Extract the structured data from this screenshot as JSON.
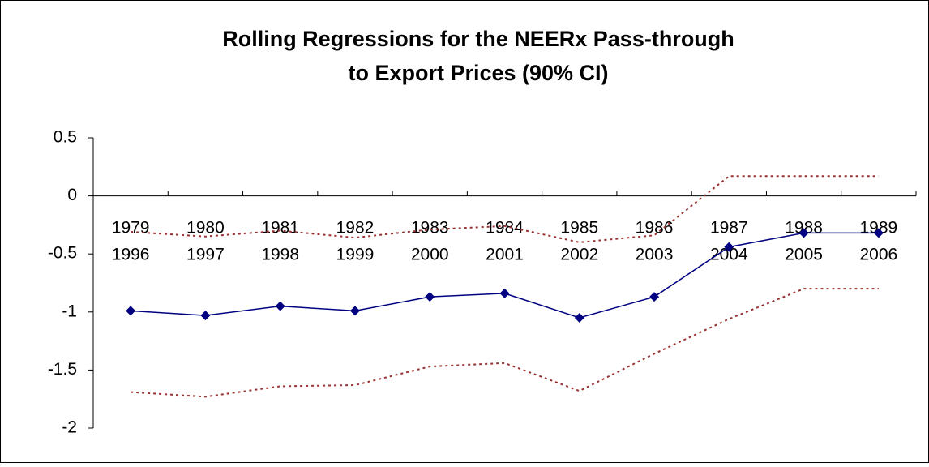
{
  "chart_data": {
    "type": "line",
    "title": [
      "Rolling Regressions for the NEERx Pass-through",
      "to Export Prices (90% CI)"
    ],
    "categories": [
      [
        "1979",
        "1996"
      ],
      [
        "1980",
        "1997"
      ],
      [
        "1981",
        "1998"
      ],
      [
        "1982",
        "1999"
      ],
      [
        "1983",
        "2000"
      ],
      [
        "1984",
        "2001"
      ],
      [
        "1985",
        "2002"
      ],
      [
        "1986",
        "2003"
      ],
      [
        "1987",
        "2004"
      ],
      [
        "1988",
        "2005"
      ],
      [
        "1989",
        "2006"
      ]
    ],
    "series": [
      {
        "color": "#000080",
        "marker": "diamond",
        "dash": "solid",
        "values": [
          -0.99,
          -1.03,
          -0.95,
          -0.99,
          -0.87,
          -0.84,
          -1.05,
          -0.87,
          -0.44,
          -0.32,
          -0.32
        ]
      },
      {
        "color": "#993333",
        "marker": "none",
        "dash": "dotted",
        "values": [
          -0.31,
          -0.35,
          -0.3,
          -0.36,
          -0.29,
          -0.26,
          -0.4,
          -0.34,
          0.17,
          0.17,
          0.17
        ]
      },
      {
        "color": "#993333",
        "marker": "none",
        "dash": "dotted",
        "values": [
          -1.69,
          -1.73,
          -1.64,
          -1.63,
          -1.47,
          -1.44,
          -1.68,
          -1.36,
          -1.06,
          -0.8,
          -0.8
        ]
      }
    ],
    "ylim": [
      -2,
      0.5
    ],
    "yticks": [
      -2,
      -1.5,
      -1,
      -0.5,
      0,
      0.5
    ],
    "grid": false
  }
}
